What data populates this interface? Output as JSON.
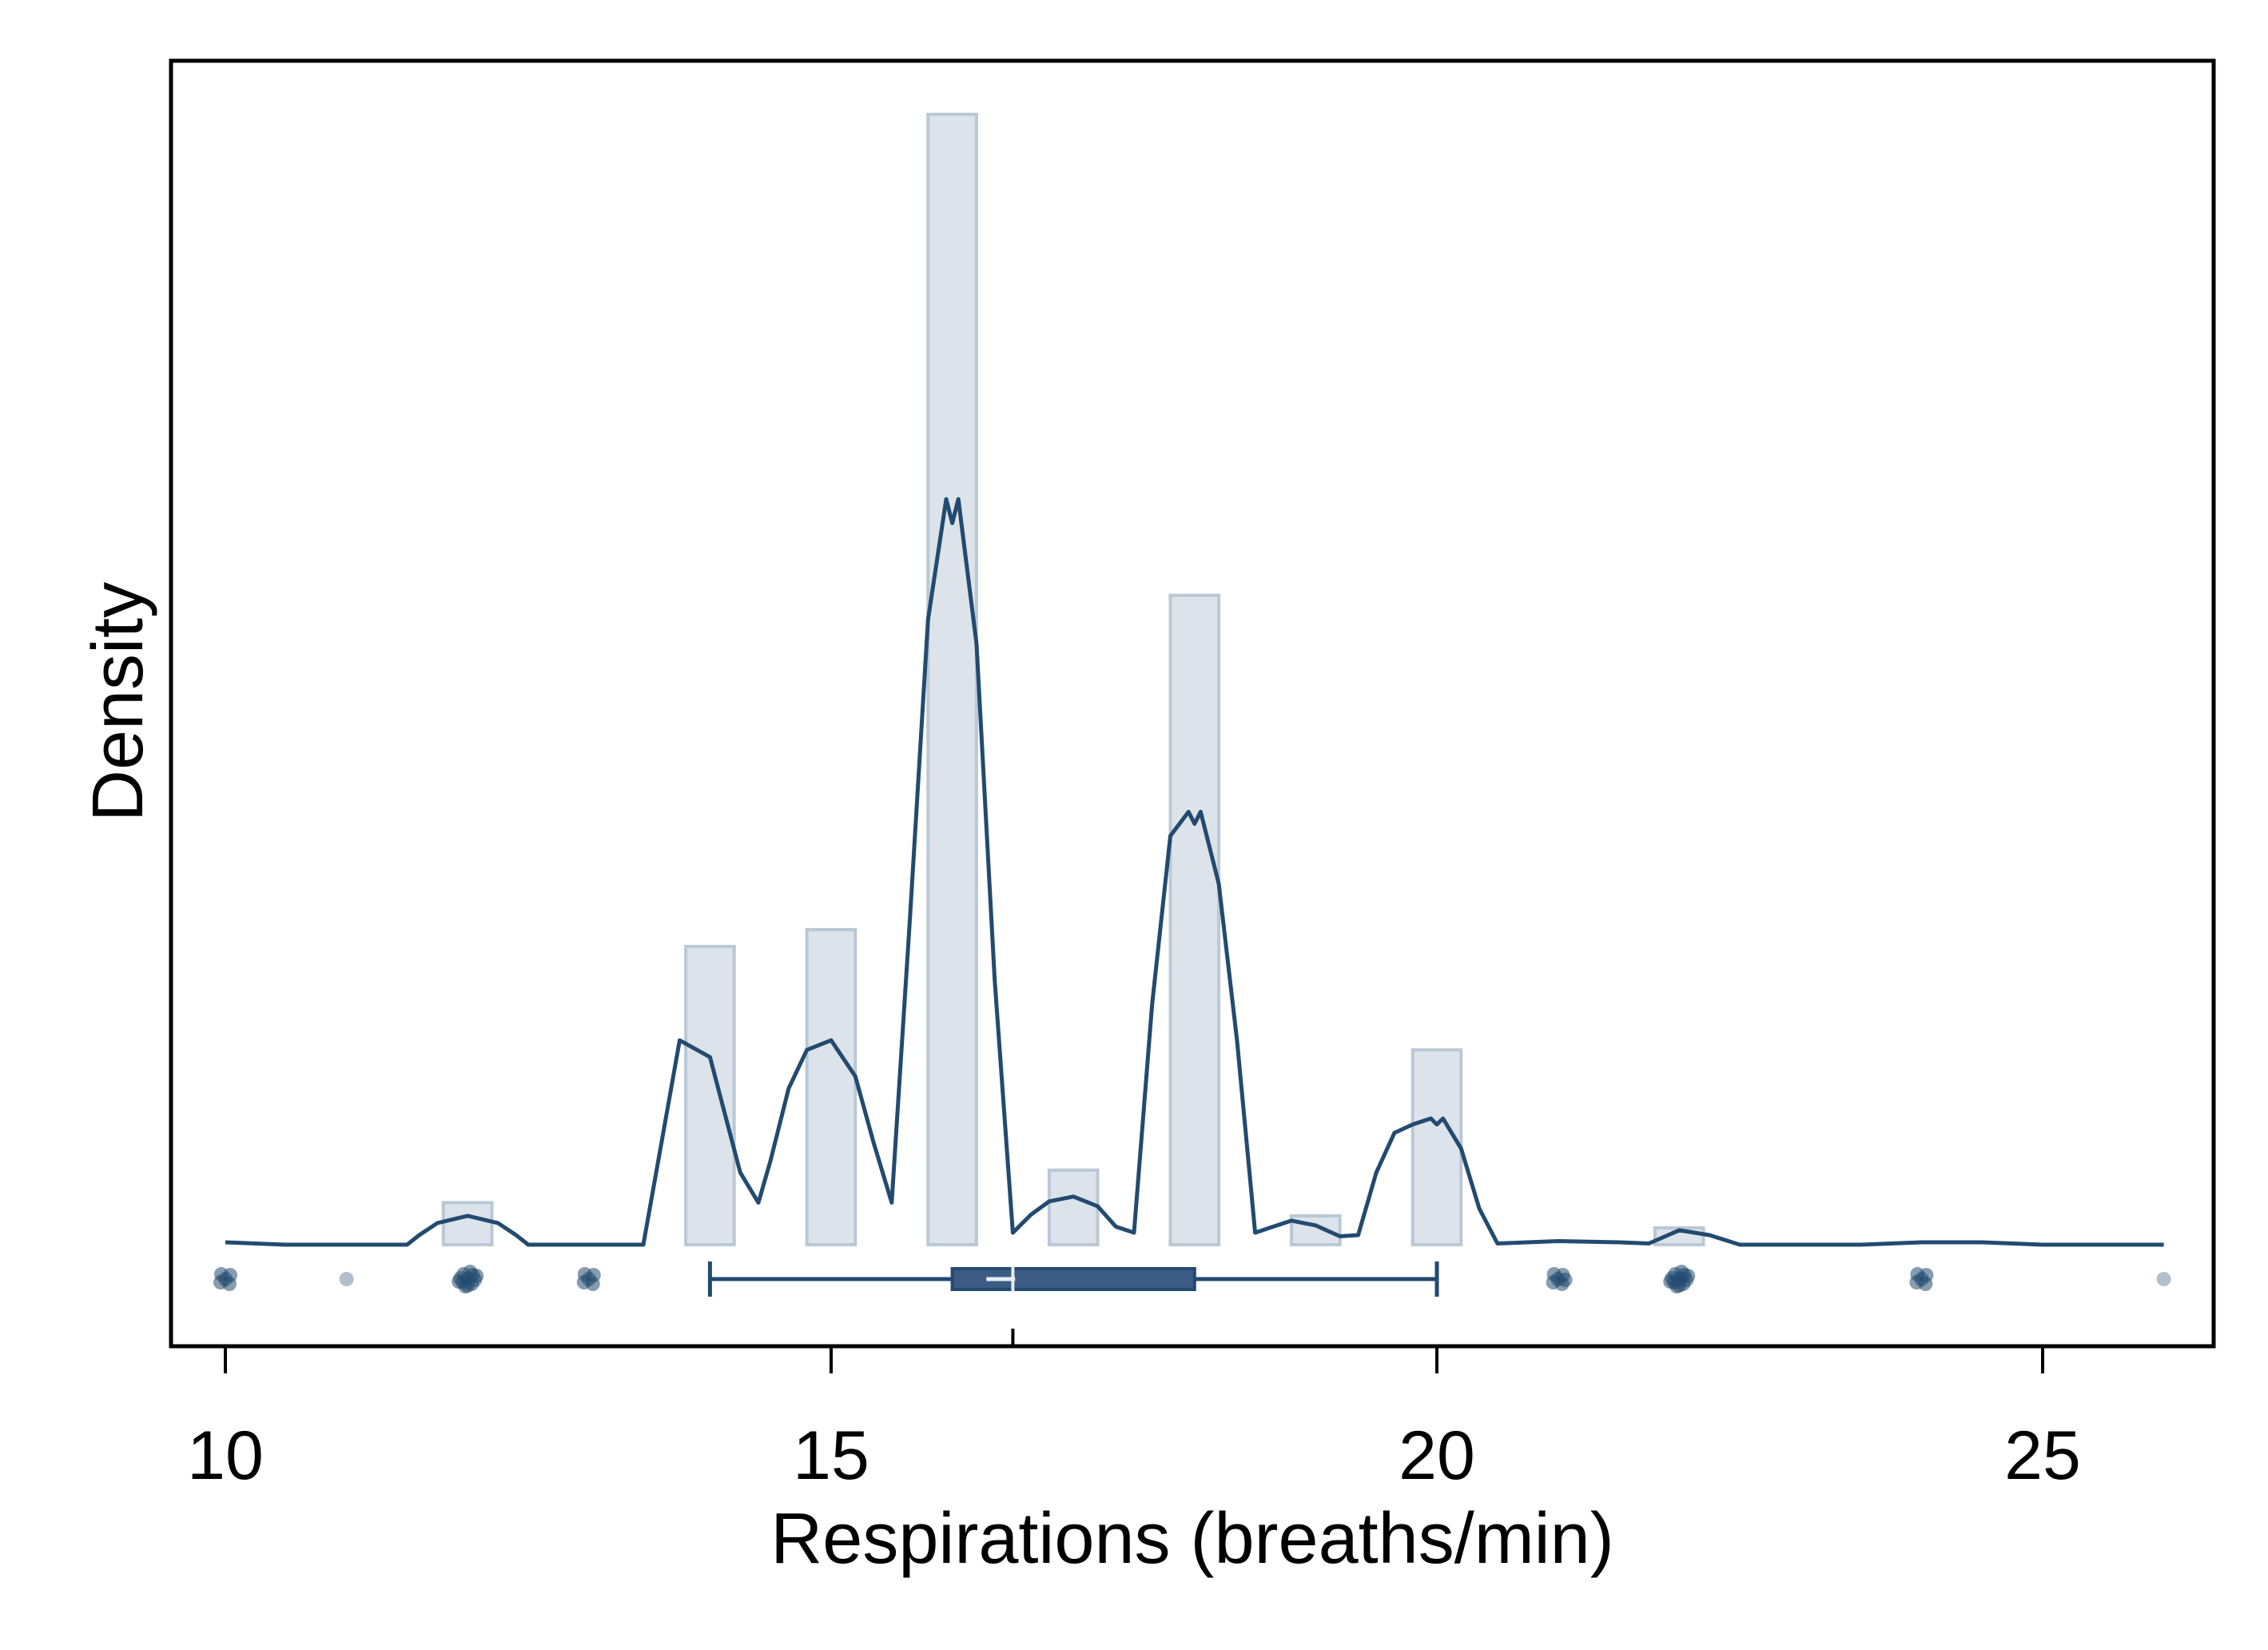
{
  "chart_data": {
    "type": "histogram",
    "xlabel": "Respirations (breaths/min)",
    "ylabel": "Density",
    "xlim": [
      9.6,
      26.5
    ],
    "x_ticks": [
      10,
      15,
      20,
      25
    ],
    "x_tick_labels": [
      "10",
      "15",
      "20",
      "25"
    ],
    "grid": false,
    "legend": "none",
    "histogram": {
      "bin_width": 0.4,
      "bins": [
        {
          "x": 12,
          "density": 0.035
        },
        {
          "x": 14,
          "density": 0.248
        },
        {
          "x": 15,
          "density": 0.262
        },
        {
          "x": 16,
          "density": 0.94
        },
        {
          "x": 17,
          "density": 0.062
        },
        {
          "x": 18,
          "density": 0.54
        },
        {
          "x": 19,
          "density": 0.024
        },
        {
          "x": 20,
          "density": 0.162
        },
        {
          "x": 22,
          "density": 0.014
        }
      ]
    },
    "density_curve": {
      "x": [
        10,
        10.5,
        11,
        11.5,
        11.6,
        11.75,
        12,
        12.25,
        12.4,
        12.5,
        13,
        13.45,
        13.6,
        13.75,
        14,
        14.25,
        14.4,
        14.5,
        14.65,
        14.8,
        15,
        15.2,
        15.35,
        15.5,
        15.65,
        15.8,
        15.95,
        16,
        16.05,
        16.2,
        16.35,
        16.5,
        16.65,
        16.8,
        17,
        17.2,
        17.35,
        17.5,
        17.65,
        17.8,
        17.95,
        18,
        18.05,
        18.2,
        18.35,
        18.5,
        18.65,
        18.8,
        19,
        19.2,
        19.35,
        19.5,
        19.65,
        19.8,
        19.95,
        20,
        20.05,
        20.2,
        20.35,
        20.5,
        20.75,
        21,
        21.5,
        21.75,
        22,
        22.25,
        22.5,
        23,
        23.5,
        24,
        24.5,
        25,
        25.5,
        26
      ],
      "density": [
        0.002,
        0,
        0,
        0,
        0.008,
        0.018,
        0.024,
        0.018,
        0.008,
        0,
        0,
        0,
        0.085,
        0.17,
        0.156,
        0.06,
        0.035,
        0.07,
        0.13,
        0.162,
        0.17,
        0.14,
        0.085,
        0.035,
        0.27,
        0.52,
        0.62,
        0.6,
        0.62,
        0.5,
        0.22,
        0.01,
        0.025,
        0.036,
        0.04,
        0.032,
        0.015,
        0.01,
        0.2,
        0.34,
        0.36,
        0.35,
        0.36,
        0.3,
        0.17,
        0.01,
        0.015,
        0.02,
        0.016,
        0.007,
        0.008,
        0.06,
        0.093,
        0.1,
        0.105,
        0.1,
        0.105,
        0.08,
        0.03,
        0.001,
        0.002,
        0.003,
        0.002,
        0.001,
        0.012,
        0.008,
        0,
        0,
        0,
        0.002,
        0.002,
        0,
        0,
        0
      ]
    },
    "box_plot": {
      "whisker_low": 14,
      "q1": 16,
      "median": 16.4,
      "mean": 16.5,
      "q3": 18,
      "whisker_high": 20
    },
    "points": [
      {
        "x": 10,
        "n": 5
      },
      {
        "x": 11,
        "n": 1
      },
      {
        "x": 12,
        "n": 12
      },
      {
        "x": 13,
        "n": 5
      },
      {
        "x": 21,
        "n": 6
      },
      {
        "x": 22,
        "n": 12
      },
      {
        "x": 24,
        "n": 5
      },
      {
        "x": 26,
        "n": 1
      }
    ],
    "colors": {
      "line": "#234a70",
      "box_fill": "#3b5b84",
      "bar_fill": "#dce3ea",
      "bar_stroke": "#bac8d5",
      "point": "#234a70",
      "frame": "#000000"
    }
  }
}
